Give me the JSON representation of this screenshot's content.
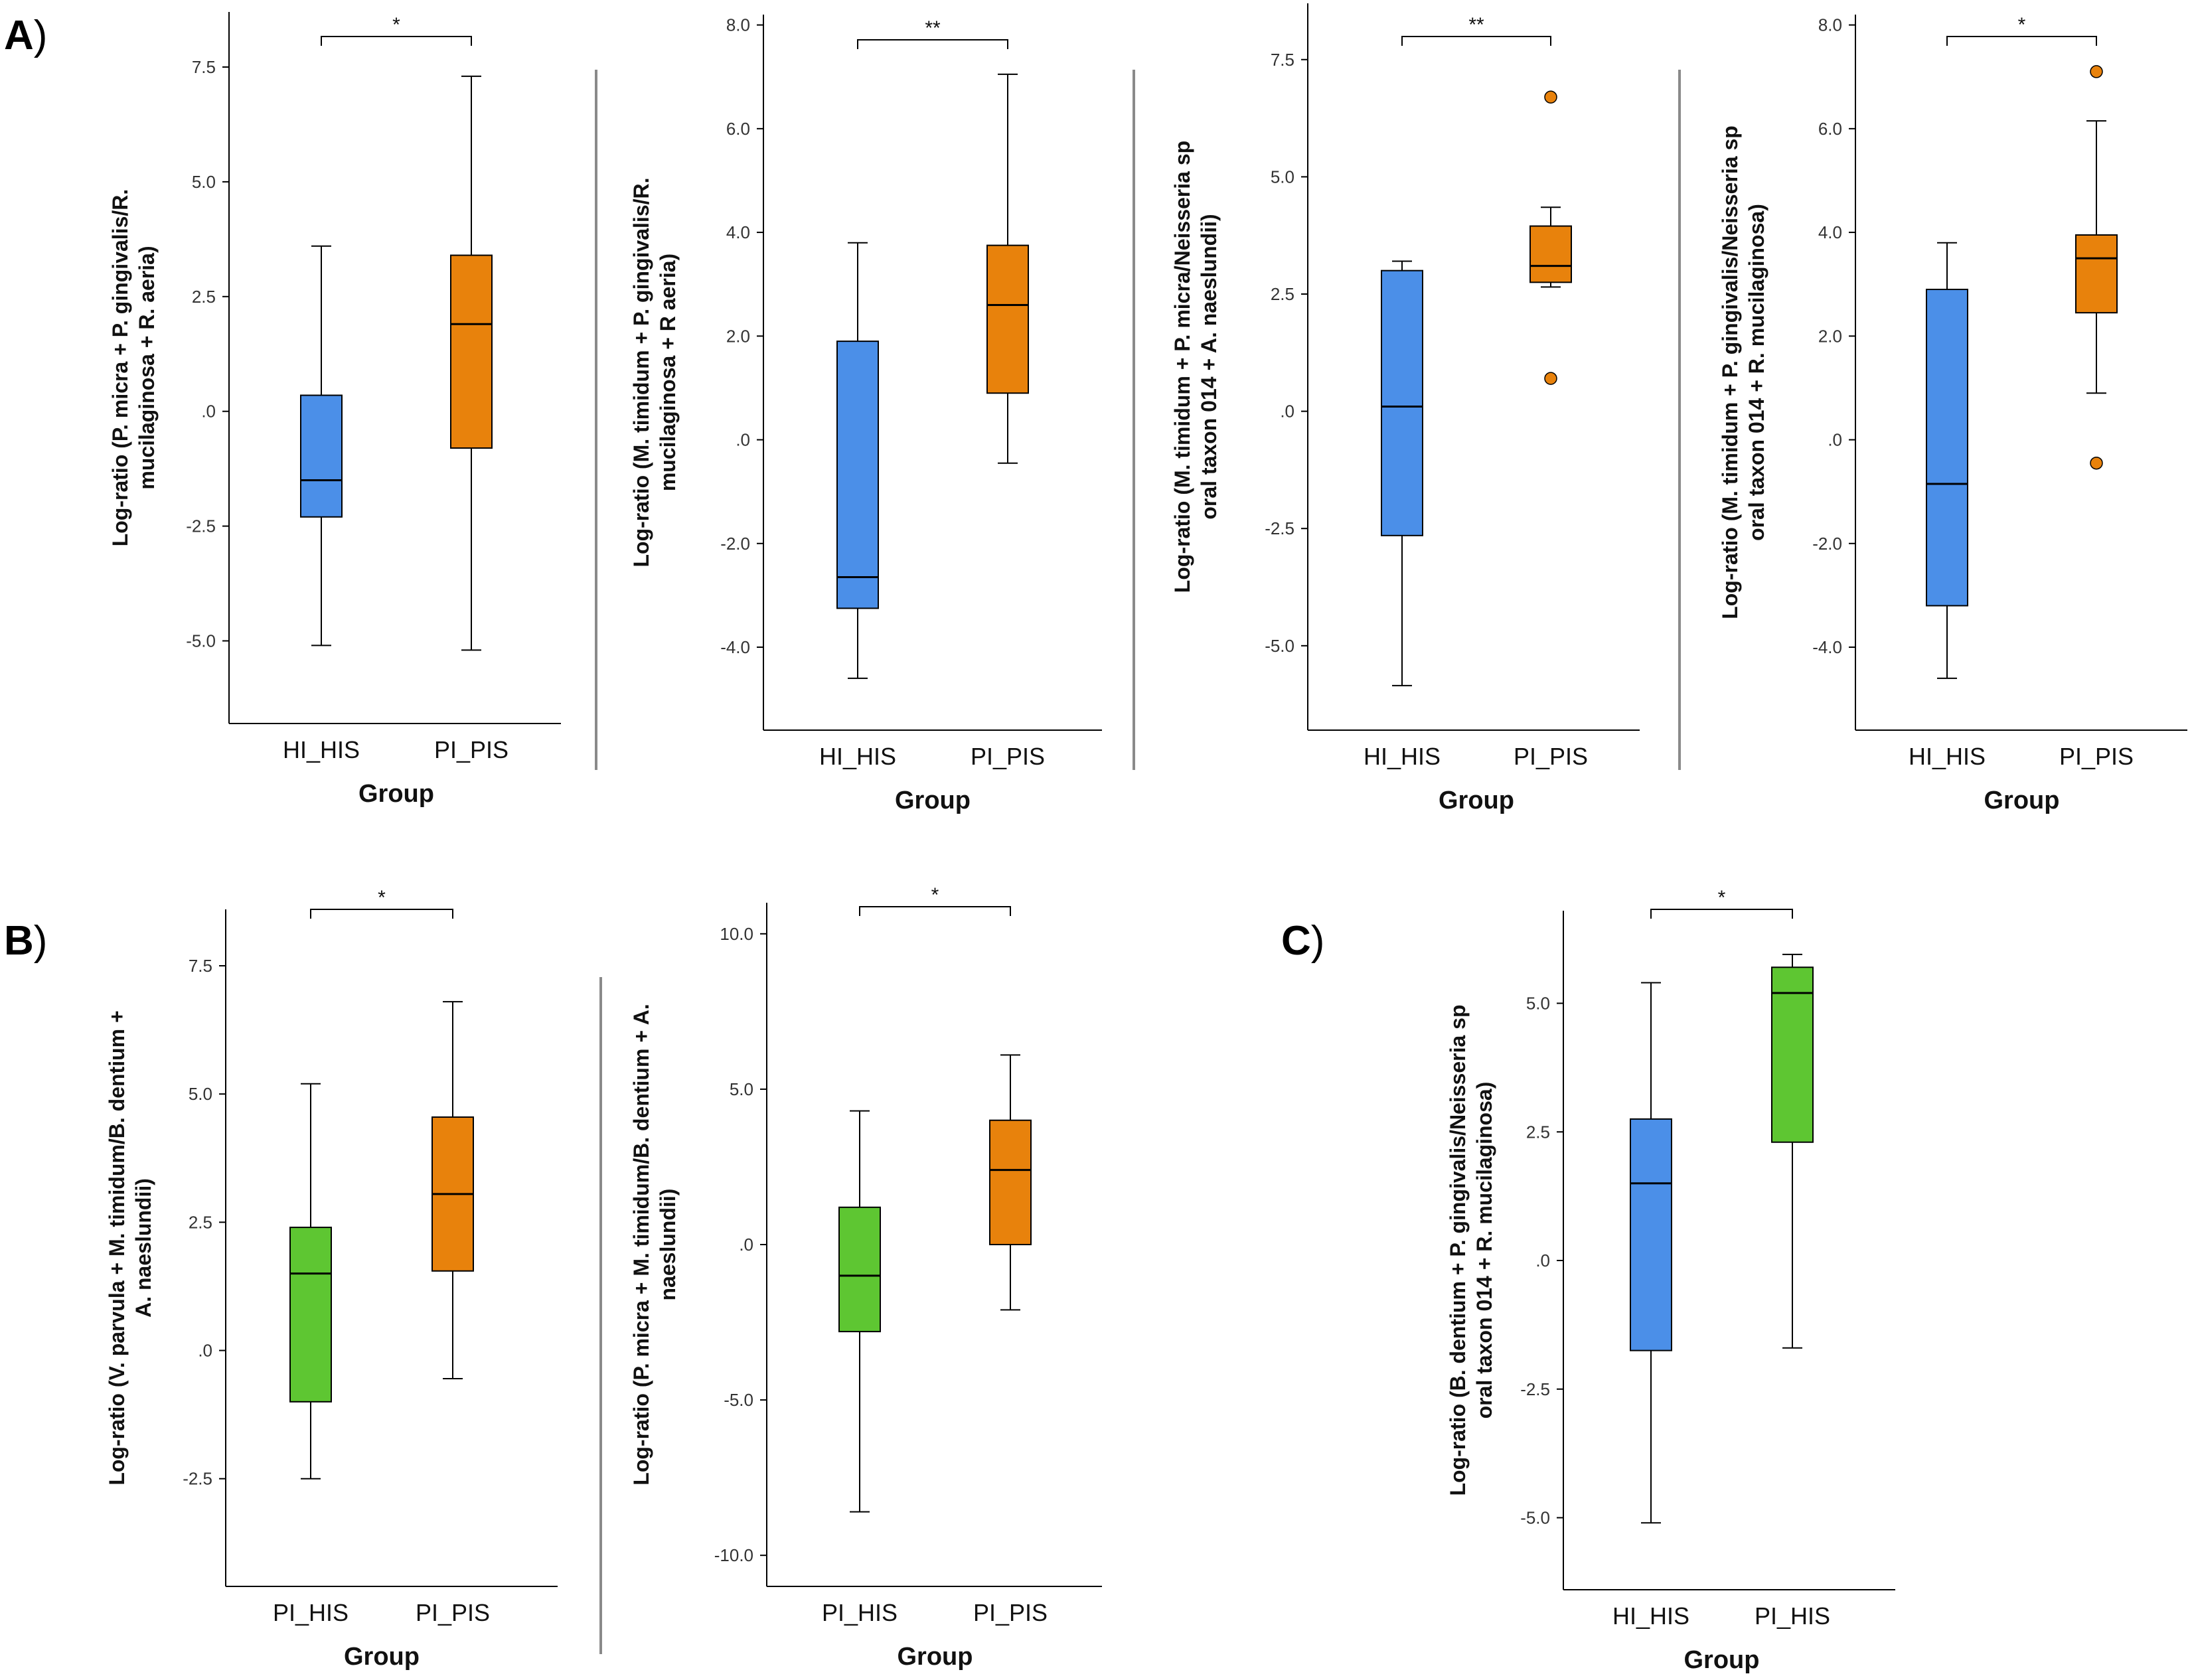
{
  "panels": {
    "A": {
      "letter": "A",
      "paren": ")"
    },
    "B": {
      "letter": "B",
      "paren": ")"
    },
    "C": {
      "letter": "C",
      "paren": ")"
    }
  },
  "colors": {
    "blue": "#4b8fe8",
    "orange": "#e8820c",
    "green": "#5ec632",
    "axis": "#000000",
    "separator": "#8a8a8a"
  },
  "chart_data": [
    {
      "type": "boxplot",
      "panel": "A",
      "ylabel_lines": [
        "Log-ratio (P. micra + P. gingivalis/R.",
        "mucilaginosa + R. aeria)"
      ],
      "xlabel": "Group",
      "yticks": [
        -5.0,
        -2.5,
        0,
        2.5,
        5.0,
        7.5
      ],
      "ytick_labels": [
        "-5.0",
        "-2.5",
        ".0",
        "2.5",
        "5.0",
        "7.5"
      ],
      "ylim": [
        -6.8,
        8.7
      ],
      "significance": "*",
      "boxes": [
        {
          "group": "HI_HIS",
          "color": "blue",
          "whisker_low": -5.1,
          "q1": -2.3,
          "median": -1.5,
          "q3": 0.35,
          "whisker_high": 3.6,
          "outliers": []
        },
        {
          "group": "PI_PIS",
          "color": "orange",
          "whisker_low": -5.2,
          "q1": -0.8,
          "median": 1.9,
          "q3": 3.4,
          "whisker_high": 7.3,
          "outliers": []
        }
      ]
    },
    {
      "type": "boxplot",
      "panel": "A",
      "ylabel_lines": [
        "Log-ratio (M. timidum + P. gingivalis/R.",
        "mucilaginosa + R aeria)"
      ],
      "xlabel": "Group",
      "yticks": [
        -4.0,
        -2.0,
        0,
        2.0,
        4.0,
        6.0,
        8.0
      ],
      "ytick_labels": [
        "-4.0",
        "-2.0",
        ".0",
        "2.0",
        "4.0",
        "6.0",
        "8.0"
      ],
      "ylim": [
        -5.6,
        8.2
      ],
      "significance": "**",
      "boxes": [
        {
          "group": "HI_HIS",
          "color": "blue",
          "whisker_low": -4.6,
          "q1": -3.25,
          "median": -2.65,
          "q3": 1.9,
          "whisker_high": 3.8,
          "outliers": []
        },
        {
          "group": "PI_PIS",
          "color": "orange",
          "whisker_low": -0.45,
          "q1": 0.9,
          "median": 2.6,
          "q3": 3.75,
          "whisker_high": 7.05,
          "outliers": []
        }
      ]
    },
    {
      "type": "boxplot",
      "panel": "A",
      "ylabel_lines": [
        "Log-ratio (M. timidum + P. micra/Neisseria sp",
        "oral taxon 014 + A. naeslundii)"
      ],
      "xlabel": "Group",
      "yticks": [
        -5.0,
        -2.5,
        0,
        2.5,
        5.0,
        7.5
      ],
      "ytick_labels": [
        "-5.0",
        "-2.5",
        ".0",
        "2.5",
        "5.0",
        "7.5"
      ],
      "ylim": [
        -6.8,
        8.7
      ],
      "significance": "**",
      "boxes": [
        {
          "group": "HI_HIS",
          "color": "blue",
          "whisker_low": -5.85,
          "q1": -2.65,
          "median": 0.1,
          "q3": 3.0,
          "whisker_high": 3.2,
          "outliers": []
        },
        {
          "group": "PI_PIS",
          "color": "orange",
          "whisker_low": 2.65,
          "q1": 2.75,
          "median": 3.1,
          "q3": 3.95,
          "whisker_high": 4.35,
          "outliers": [
            6.7,
            0.7
          ]
        }
      ]
    },
    {
      "type": "boxplot",
      "panel": "A",
      "ylabel_lines": [
        "Log-ratio (M. timidum + P. gingivalis/Neisseria sp",
        "oral taxon 014 + R. mucilaginosa)"
      ],
      "xlabel": "Group",
      "yticks": [
        -4.0,
        -2.0,
        0,
        2.0,
        4.0,
        6.0,
        8.0
      ],
      "ytick_labels": [
        "-4.0",
        "-2.0",
        ".0",
        "2.0",
        "4.0",
        "6.0",
        "8.0"
      ],
      "ylim": [
        -5.6,
        8.2
      ],
      "significance": "*",
      "boxes": [
        {
          "group": "HI_HIS",
          "color": "blue",
          "whisker_low": -4.6,
          "q1": -3.2,
          "median": -0.85,
          "q3": 2.9,
          "whisker_high": 3.8,
          "outliers": []
        },
        {
          "group": "PI_PIS",
          "color": "orange",
          "whisker_low": 0.9,
          "q1": 2.45,
          "median": 3.5,
          "q3": 3.95,
          "whisker_high": 6.15,
          "outliers": [
            7.1,
            -0.45
          ]
        }
      ]
    },
    {
      "type": "boxplot",
      "panel": "B",
      "ylabel_lines": [
        "Log-ratio (V. parvula + M. timidum/B. dentium +",
        "A. naeslundii)"
      ],
      "xlabel": "Group",
      "yticks": [
        -2.5,
        0,
        2.5,
        5.0,
        7.5
      ],
      "ytick_labels": [
        "-2.5",
        ".0",
        "2.5",
        "5.0",
        "7.5"
      ],
      "ylim": [
        -4.6,
        8.6
      ],
      "significance": "*",
      "boxes": [
        {
          "group": "PI_HIS",
          "color": "green",
          "whisker_low": -2.5,
          "q1": -1.0,
          "median": 1.5,
          "q3": 2.4,
          "whisker_high": 5.2,
          "outliers": []
        },
        {
          "group": "PI_PIS",
          "color": "orange",
          "whisker_low": -0.55,
          "q1": 1.55,
          "median": 3.05,
          "q3": 4.55,
          "whisker_high": 6.8,
          "outliers": []
        }
      ]
    },
    {
      "type": "boxplot",
      "panel": "B",
      "ylabel_lines": [
        "Log-ratio (P. micra + M. timidum/B. dentium + A.",
        "naeslundii)"
      ],
      "xlabel": "Group",
      "yticks": [
        -10.0,
        -5.0,
        0,
        5.0,
        10.0
      ],
      "ytick_labels": [
        "-10.0",
        "-5.0",
        ".0",
        "5.0",
        "10.0"
      ],
      "ylim": [
        -11.0,
        11.0
      ],
      "significance": "*",
      "boxes": [
        {
          "group": "PI_HIS",
          "color": "green",
          "whisker_low": -8.6,
          "q1": -2.8,
          "median": -1.0,
          "q3": 1.2,
          "whisker_high": 4.3,
          "outliers": []
        },
        {
          "group": "PI_PIS",
          "color": "orange",
          "whisker_low": -2.1,
          "q1": 0.0,
          "median": 2.4,
          "q3": 4.0,
          "whisker_high": 6.1,
          "outliers": []
        }
      ]
    },
    {
      "type": "boxplot",
      "panel": "C",
      "ylabel_lines": [
        "Log-ratio (B. dentium + P. gingivalis/Neisseria sp",
        "oral taxon 014 + R. mucilaginosa)"
      ],
      "xlabel": "Group",
      "yticks": [
        -5.0,
        -2.5,
        0,
        2.5,
        5.0
      ],
      "ytick_labels": [
        "-5.0",
        "-2.5",
        ".0",
        "2.5",
        "5.0"
      ],
      "ylim": [
        -6.4,
        6.8
      ],
      "significance": "*",
      "boxes": [
        {
          "group": "HI_HIS",
          "color": "blue",
          "whisker_low": -5.1,
          "q1": -1.75,
          "median": 1.5,
          "q3": 2.75,
          "whisker_high": 5.4,
          "outliers": []
        },
        {
          "group": "PI_HIS",
          "color": "green",
          "whisker_low": -1.7,
          "q1": 2.3,
          "median": 5.2,
          "q3": 5.7,
          "whisker_high": 5.95,
          "outliers": []
        }
      ]
    }
  ]
}
